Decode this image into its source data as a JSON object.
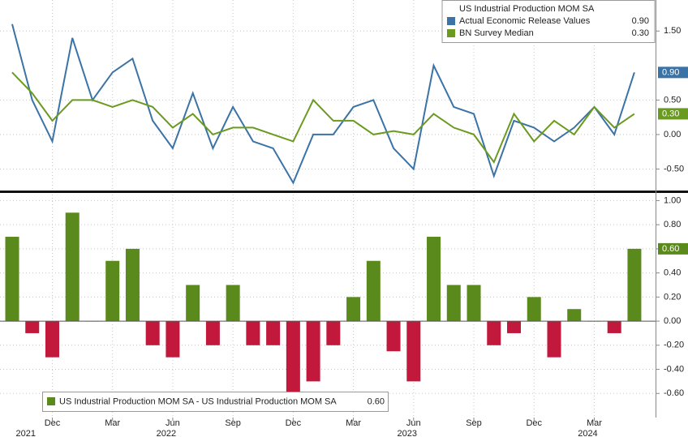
{
  "chart_data": [
    {
      "type": "line",
      "title": "US Industrial Production MOM SA",
      "series": [
        {
          "name": "Actual Economic Release Values",
          "color": "#3b73a6",
          "values": [
            1.6,
            0.5,
            -0.1,
            1.4,
            0.5,
            0.9,
            1.1,
            0.2,
            -0.2,
            0.6,
            -0.2,
            0.4,
            -0.1,
            -0.2,
            -0.7,
            0.0,
            0.0,
            0.4,
            0.5,
            -0.2,
            -0.5,
            1.0,
            0.4,
            0.3,
            -0.6,
            0.2,
            0.1,
            -0.1,
            0.1,
            0.4,
            0.0,
            0.9
          ],
          "value_labels": [
            null,
            null,
            null,
            null,
            null,
            null,
            null,
            null,
            null,
            null,
            null,
            null,
            null,
            null,
            null,
            null,
            null,
            null,
            null,
            null,
            null,
            null,
            null,
            null,
            null,
            null,
            null,
            null,
            null,
            null,
            null,
            "0.90"
          ]
        },
        {
          "name": "BN Survey Median",
          "color": "#6a9a1f",
          "values": [
            0.9,
            0.6,
            0.2,
            0.5,
            0.5,
            0.4,
            0.5,
            0.4,
            0.1,
            0.3,
            0.0,
            0.1,
            0.1,
            0.0,
            -0.1,
            0.5,
            0.2,
            0.2,
            0.0,
            0.05,
            0.0,
            0.3,
            0.1,
            0.0,
            -0.4,
            0.3,
            -0.1,
            0.2,
            0.0,
            0.4,
            0.1,
            0.3
          ],
          "value_labels": [
            null,
            null,
            null,
            null,
            null,
            null,
            null,
            null,
            null,
            null,
            null,
            null,
            null,
            null,
            null,
            null,
            null,
            null,
            null,
            null,
            null,
            null,
            null,
            null,
            null,
            null,
            null,
            null,
            null,
            null,
            null,
            "0.30"
          ]
        }
      ],
      "ylim": [
        -0.8,
        1.95
      ],
      "yticks": [
        {
          "value": -0.5,
          "label": "-0.50"
        },
        {
          "value": 0,
          "label": "0.00"
        },
        {
          "value": 0.5,
          "label": "0.50"
        },
        {
          "value": 1.5,
          "label": "1.50"
        }
      ],
      "grid": true
    },
    {
      "type": "bar",
      "categories": [
        null,
        null,
        "Dec",
        null,
        null,
        "Mar",
        null,
        null,
        "Jun",
        null,
        null,
        "Sep",
        null,
        null,
        "Dec",
        null,
        null,
        "Mar",
        null,
        null,
        "Jun",
        null,
        null,
        "Sep",
        null,
        null,
        "Dec",
        null,
        null,
        "Mar",
        null,
        null
      ],
      "year_labels": [
        null,
        "2021",
        null,
        null,
        null,
        null,
        null,
        null,
        "2022",
        null,
        null,
        null,
        null,
        null,
        null,
        null,
        null,
        null,
        null,
        null,
        "2023",
        null,
        null,
        null,
        null,
        null,
        null,
        null,
        null,
        "2024",
        null,
        null
      ],
      "series": [
        {
          "name": "US Industrial Production MOM SA - US Industrial Production MOM SA",
          "color": "#5b8a1c",
          "negative_color": "#c2183c",
          "values": [
            0.7,
            -0.1,
            -0.3,
            0.9,
            0.0,
            0.5,
            0.6,
            -0.2,
            -0.3,
            0.3,
            -0.2,
            0.3,
            -0.2,
            -0.2,
            -0.6,
            -0.5,
            -0.2,
            0.2,
            0.5,
            -0.25,
            -0.5,
            0.7,
            0.3,
            0.3,
            -0.2,
            -0.1,
            0.2,
            -0.3,
            0.1,
            0.0,
            -0.1,
            0.6
          ],
          "value_labels": [
            null,
            null,
            null,
            null,
            null,
            null,
            null,
            null,
            null,
            null,
            null,
            null,
            null,
            null,
            null,
            null,
            null,
            null,
            null,
            null,
            null,
            null,
            null,
            null,
            null,
            null,
            null,
            null,
            null,
            null,
            null,
            "0.60"
          ]
        }
      ],
      "ylim": [
        -0.8,
        1.05
      ],
      "yticks": [
        {
          "value": -0.6,
          "label": "-0.60"
        },
        {
          "value": -0.4,
          "label": "-0.40"
        },
        {
          "value": -0.2,
          "label": "-0.20"
        },
        {
          "value": 0,
          "label": "0.00"
        },
        {
          "value": 0.2,
          "label": "0.20"
        },
        {
          "value": 0.4,
          "label": "0.40"
        },
        {
          "value": 0.6,
          "label": "0.60"
        },
        {
          "value": 0.8,
          "label": "0.80"
        },
        {
          "value": 1.0,
          "label": "1.00"
        }
      ],
      "grid": true
    }
  ]
}
